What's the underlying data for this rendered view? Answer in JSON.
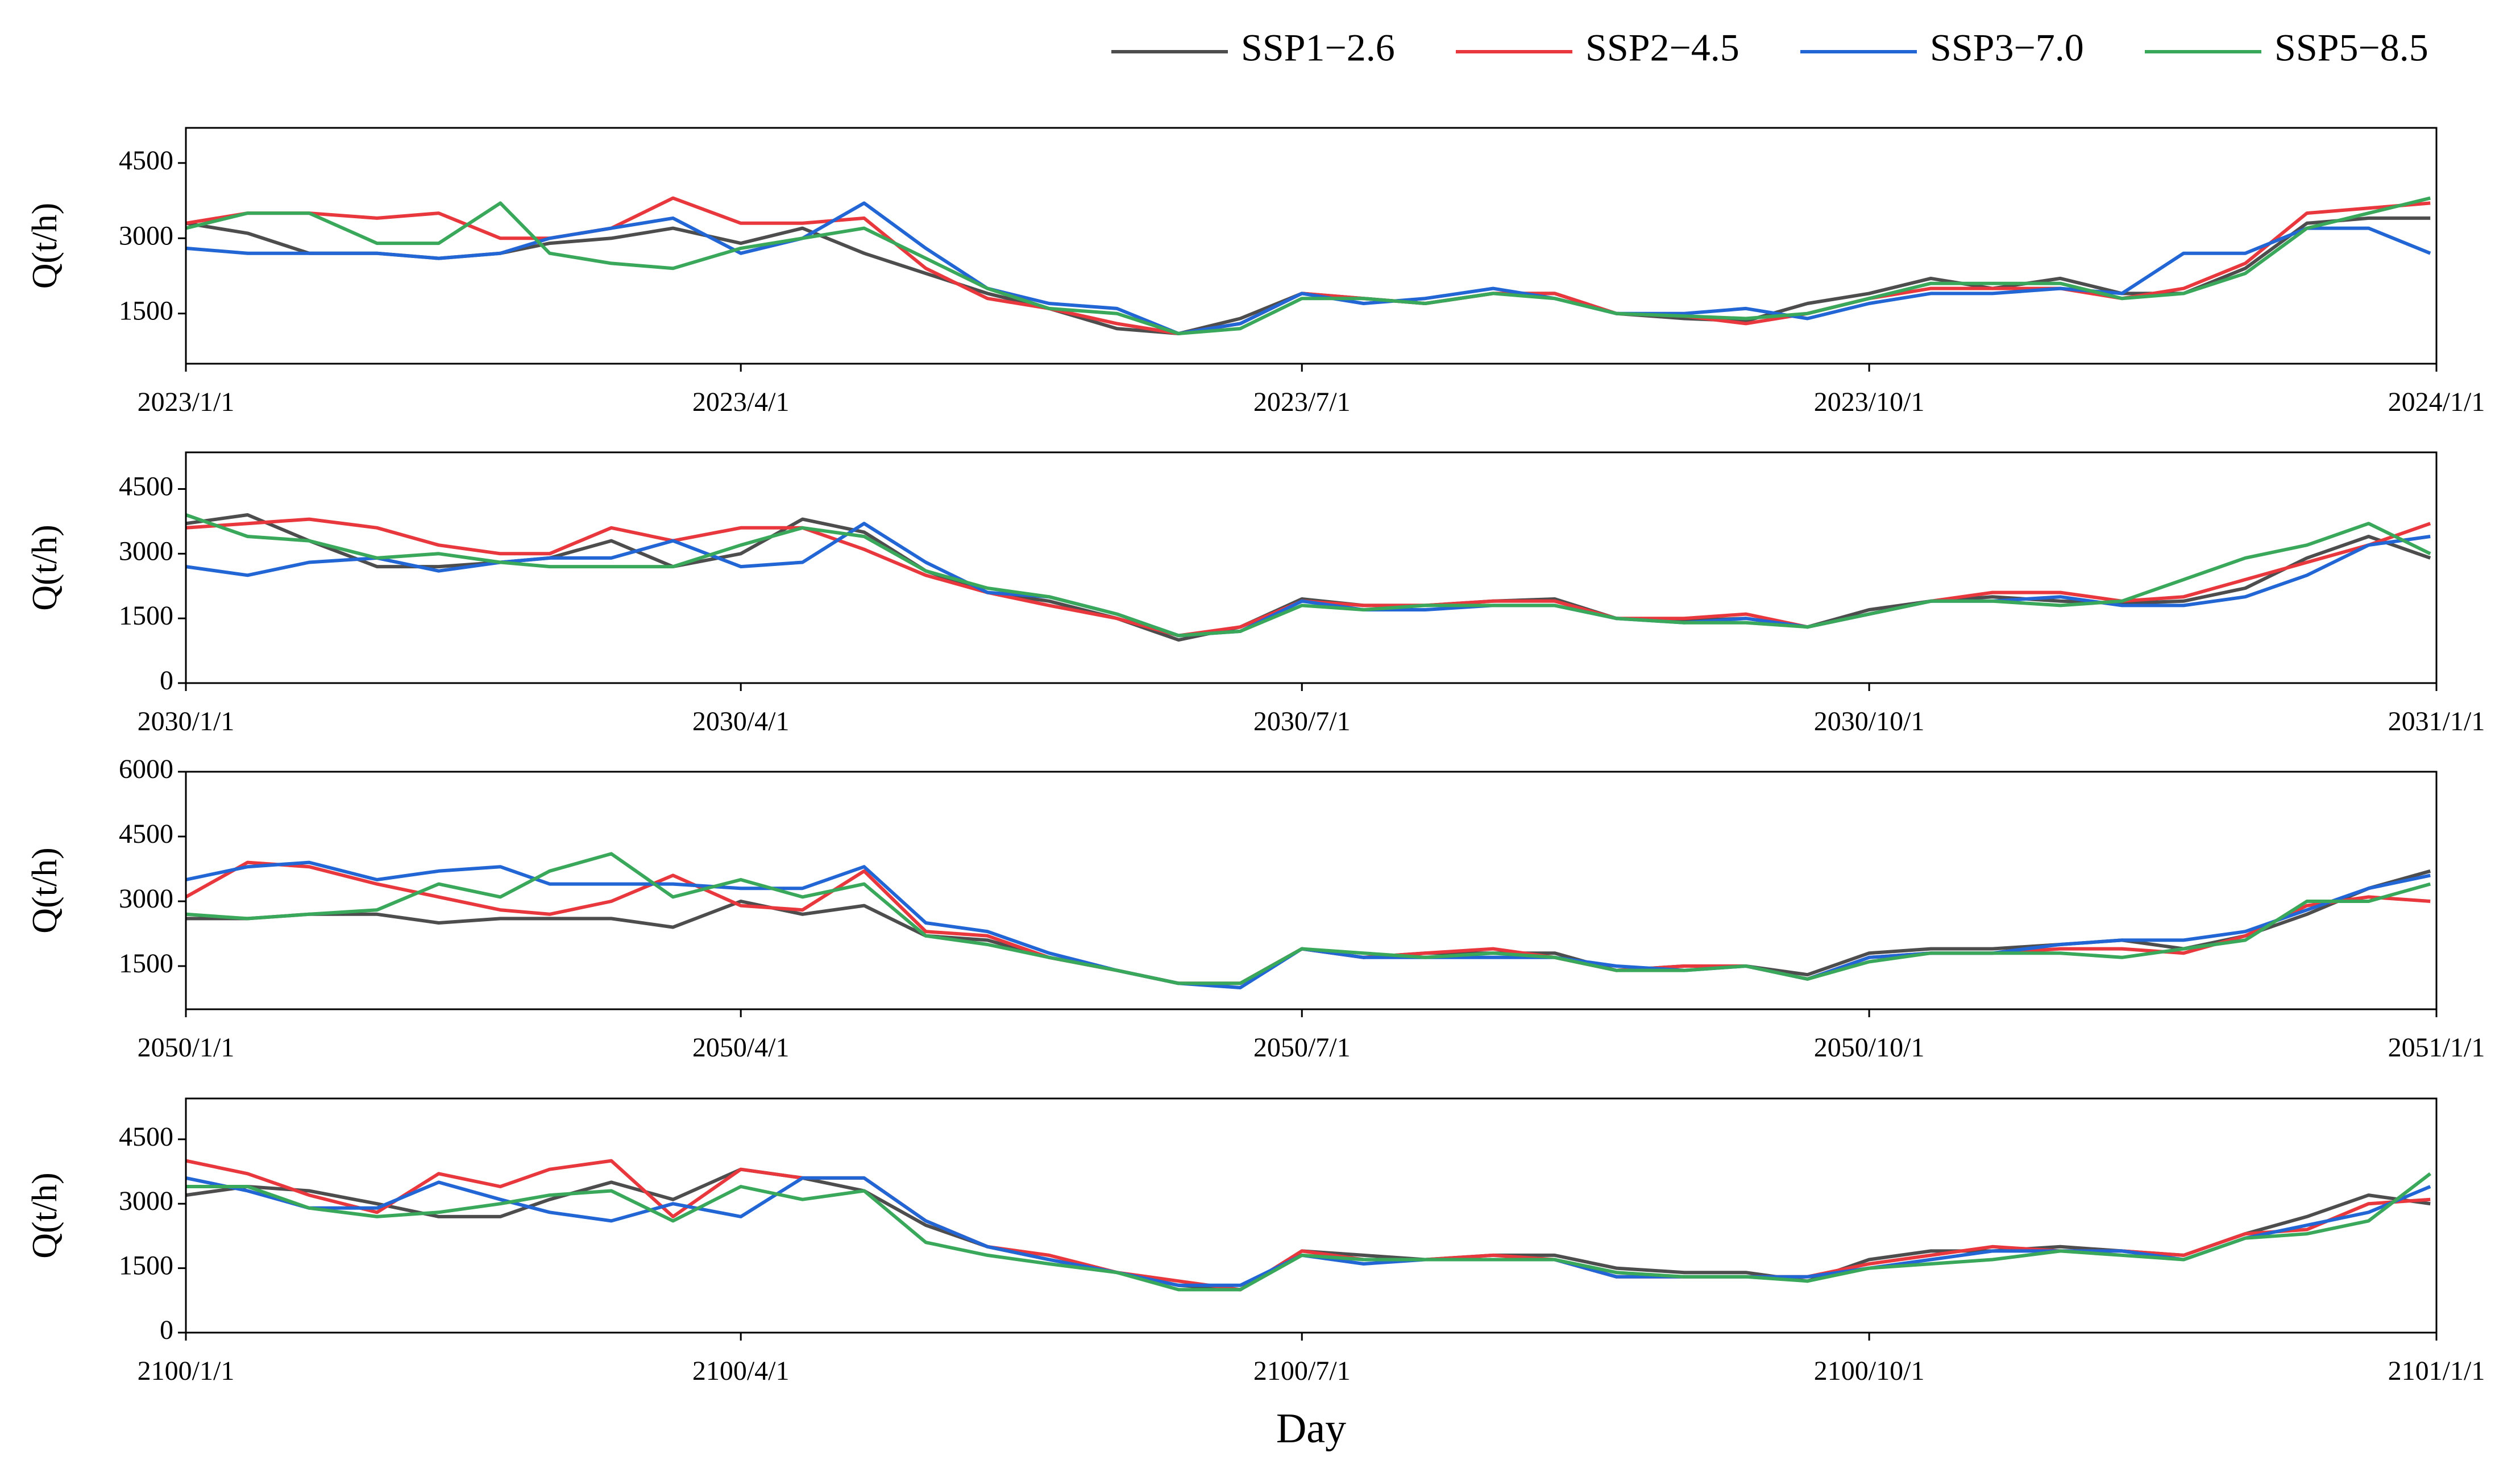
{
  "chart_data": [
    {
      "type": "line",
      "ylabel": "Q(t/h)",
      "legend": "upper right",
      "grid": false,
      "xlim": [
        "2023/1/1",
        "2024/1/1"
      ],
      "xticks": [
        "2023/1/1",
        "2023/4/1",
        "2023/7/1",
        "2023/10/1",
        "2024/1/1"
      ],
      "ylim": [
        500,
        5200
      ],
      "yticks": [
        1500,
        3000,
        4500
      ],
      "x": [
        "2023/1/1",
        "2023/1/11",
        "2023/1/21",
        "2023/2/1",
        "2023/2/11",
        "2023/2/21",
        "2023/3/1",
        "2023/3/11",
        "2023/3/21",
        "2023/4/1",
        "2023/4/11",
        "2023/4/21",
        "2023/5/1",
        "2023/5/11",
        "2023/5/21",
        "2023/6/1",
        "2023/6/11",
        "2023/6/21",
        "2023/7/1",
        "2023/7/11",
        "2023/7/21",
        "2023/8/1",
        "2023/8/11",
        "2023/8/21",
        "2023/9/1",
        "2023/9/11",
        "2023/9/21",
        "2023/10/1",
        "2023/10/11",
        "2023/10/21",
        "2023/11/1",
        "2023/11/11",
        "2023/11/21",
        "2023/12/1",
        "2023/12/11",
        "2023/12/21",
        "2023/12/31"
      ],
      "series": [
        {
          "name": "SSP1−2.6",
          "color": "#4d4d4d",
          "values": [
            3300,
            3100,
            2700,
            2700,
            2600,
            2700,
            2900,
            3000,
            3200,
            2900,
            3200,
            2700,
            2300,
            1900,
            1600,
            1200,
            1100,
            1400,
            1900,
            1800,
            1700,
            1900,
            1900,
            1500,
            1400,
            1350,
            1700,
            1900,
            2200,
            2000,
            2200,
            1900,
            1900,
            2400,
            3300,
            3400,
            3400
          ]
        },
        {
          "name": "SSP2−4.5",
          "color": "#e8383d",
          "values": [
            3300,
            3500,
            3500,
            3400,
            3500,
            3000,
            3000,
            3200,
            3800,
            3300,
            3300,
            3400,
            2400,
            1800,
            1600,
            1300,
            1100,
            1300,
            1900,
            1800,
            1700,
            1900,
            1900,
            1500,
            1450,
            1300,
            1500,
            1800,
            2000,
            2000,
            2000,
            1800,
            2000,
            2500,
            3500,
            3600,
            3700
          ]
        },
        {
          "name": "SSP3−7.0",
          "color": "#2166d4",
          "values": [
            2800,
            2700,
            2700,
            2700,
            2600,
            2700,
            3000,
            3200,
            3400,
            2700,
            3000,
            3700,
            2800,
            2000,
            1700,
            1600,
            1100,
            1300,
            1900,
            1700,
            1800,
            2000,
            1800,
            1500,
            1500,
            1600,
            1400,
            1700,
            1900,
            1900,
            2000,
            1900,
            2700,
            2700,
            3200,
            3200,
            2700
          ]
        },
        {
          "name": "SSP5−8.5",
          "color": "#3aa85a",
          "values": [
            3200,
            3500,
            3500,
            2900,
            2900,
            3700,
            2700,
            2500,
            2400,
            2800,
            3000,
            3200,
            2600,
            2000,
            1600,
            1500,
            1100,
            1200,
            1800,
            1800,
            1700,
            1900,
            1800,
            1500,
            1450,
            1400,
            1500,
            1800,
            2100,
            2100,
            2100,
            1800,
            1900,
            2300,
            3200,
            3500,
            3800
          ]
        }
      ]
    },
    {
      "type": "line",
      "ylabel": "Q(t/h)",
      "grid": false,
      "xlim": [
        "2030/1/1",
        "2031/1/1"
      ],
      "xticks": [
        "2030/1/1",
        "2030/4/1",
        "2030/7/1",
        "2030/10/1",
        "2031/1/1"
      ],
      "ylim": [
        0,
        5350
      ],
      "yticks": [
        0,
        1500,
        3000,
        4500
      ],
      "x": [
        "2030/1/1",
        "2030/1/11",
        "2030/1/21",
        "2030/2/1",
        "2030/2/11",
        "2030/2/21",
        "2030/3/1",
        "2030/3/11",
        "2030/3/21",
        "2030/4/1",
        "2030/4/11",
        "2030/4/21",
        "2030/5/1",
        "2030/5/11",
        "2030/5/21",
        "2030/6/1",
        "2030/6/11",
        "2030/6/21",
        "2030/7/1",
        "2030/7/11",
        "2030/7/21",
        "2030/8/1",
        "2030/8/11",
        "2030/8/21",
        "2030/9/1",
        "2030/9/11",
        "2030/9/21",
        "2030/10/1",
        "2030/10/11",
        "2030/10/21",
        "2030/11/1",
        "2030/11/11",
        "2030/11/21",
        "2030/12/1",
        "2030/12/11",
        "2030/12/21",
        "2030/12/31"
      ],
      "series": [
        {
          "name": "SSP1−2.6",
          "color": "#4d4d4d",
          "values": [
            3700,
            3900,
            3300,
            2700,
            2700,
            2800,
            2900,
            3300,
            2700,
            3000,
            3800,
            3500,
            2600,
            2100,
            1900,
            1500,
            1000,
            1300,
            1950,
            1800,
            1800,
            1900,
            1950,
            1500,
            1450,
            1500,
            1300,
            1700,
            1900,
            2000,
            1900,
            1850,
            1900,
            2200,
            2900,
            3400,
            2900
          ]
        },
        {
          "name": "SSP2−4.5",
          "color": "#e8383d",
          "values": [
            3600,
            3700,
            3800,
            3600,
            3200,
            3000,
            3000,
            3600,
            3300,
            3600,
            3600,
            3100,
            2500,
            2100,
            1800,
            1500,
            1100,
            1300,
            1900,
            1800,
            1800,
            1900,
            1900,
            1500,
            1500,
            1600,
            1300,
            1600,
            1900,
            2100,
            2100,
            1900,
            2000,
            2400,
            2800,
            3200,
            3700
          ]
        },
        {
          "name": "SSP3−7.0",
          "color": "#2166d4",
          "values": [
            2700,
            2500,
            2800,
            2900,
            2600,
            2800,
            2900,
            2900,
            3300,
            2700,
            2800,
            3700,
            2800,
            2100,
            2000,
            1600,
            1100,
            1200,
            1900,
            1700,
            1700,
            1800,
            1800,
            1500,
            1400,
            1500,
            1300,
            1600,
            1900,
            1900,
            2000,
            1800,
            1800,
            2000,
            2500,
            3200,
            3400
          ]
        },
        {
          "name": "SSP5−8.5",
          "color": "#3aa85a",
          "values": [
            3900,
            3400,
            3300,
            2900,
            3000,
            2800,
            2700,
            2700,
            2700,
            3200,
            3600,
            3400,
            2600,
            2200,
            2000,
            1600,
            1100,
            1200,
            1800,
            1700,
            1800,
            1800,
            1800,
            1500,
            1400,
            1400,
            1300,
            1600,
            1900,
            1900,
            1800,
            1900,
            2400,
            2900,
            3200,
            3700,
            3000
          ]
        }
      ]
    },
    {
      "type": "line",
      "ylabel": "Q(t/h)",
      "grid": false,
      "xlim": [
        "2050/1/1",
        "2051/1/1"
      ],
      "xticks": [
        "2050/1/1",
        "2050/4/1",
        "2050/7/1",
        "2050/10/1",
        "2051/1/1"
      ],
      "ylim": [
        500,
        6000
      ],
      "yticks": [
        1500,
        3000,
        4500,
        6000
      ],
      "x": [
        "2050/1/1",
        "2050/1/11",
        "2050/1/21",
        "2050/2/1",
        "2050/2/11",
        "2050/2/21",
        "2050/3/1",
        "2050/3/11",
        "2050/3/21",
        "2050/4/1",
        "2050/4/11",
        "2050/4/21",
        "2050/5/1",
        "2050/5/11",
        "2050/5/21",
        "2050/6/1",
        "2050/6/11",
        "2050/6/21",
        "2050/7/1",
        "2050/7/11",
        "2050/7/21",
        "2050/8/1",
        "2050/8/11",
        "2050/8/21",
        "2050/9/1",
        "2050/9/11",
        "2050/9/21",
        "2050/10/1",
        "2050/10/11",
        "2050/10/21",
        "2050/11/1",
        "2050/11/11",
        "2050/11/21",
        "2050/12/1",
        "2050/12/11",
        "2050/12/21",
        "2050/12/31"
      ],
      "series": [
        {
          "name": "SSP1−2.6",
          "color": "#4d4d4d",
          "values": [
            2600,
            2600,
            2700,
            2700,
            2500,
            2600,
            2600,
            2600,
            2400,
            3000,
            2700,
            2900,
            2200,
            2100,
            1700,
            1400,
            1100,
            1100,
            1900,
            1700,
            1800,
            1800,
            1800,
            1400,
            1500,
            1500,
            1300,
            1800,
            1900,
            1900,
            2000,
            2100,
            1900,
            2200,
            2700,
            3300,
            3700
          ]
        },
        {
          "name": "SSP2−4.5",
          "color": "#e8383d",
          "values": [
            3100,
            3900,
            3800,
            3400,
            3100,
            2800,
            2700,
            3000,
            3600,
            2900,
            2800,
            3700,
            2300,
            2200,
            1700,
            1400,
            1100,
            1100,
            1900,
            1700,
            1800,
            1900,
            1700,
            1400,
            1500,
            1500,
            1200,
            1700,
            1800,
            1800,
            1900,
            1900,
            1800,
            2200,
            2900,
            3100,
            3000
          ]
        },
        {
          "name": "SSP3−7.0",
          "color": "#2166d4",
          "values": [
            3500,
            3800,
            3900,
            3500,
            3700,
            3800,
            3400,
            3400,
            3400,
            3300,
            3300,
            3800,
            2500,
            2300,
            1800,
            1400,
            1100,
            1000,
            1900,
            1700,
            1700,
            1700,
            1700,
            1500,
            1400,
            1500,
            1200,
            1700,
            1800,
            1800,
            2000,
            2100,
            2100,
            2300,
            2800,
            3300,
            3600
          ]
        },
        {
          "name": "SSP5−8.5",
          "color": "#3aa85a",
          "values": [
            2700,
            2600,
            2700,
            2800,
            3400,
            3100,
            3700,
            4100,
            3100,
            3500,
            3100,
            3400,
            2200,
            2000,
            1700,
            1400,
            1100,
            1100,
            1900,
            1800,
            1700,
            1800,
            1700,
            1400,
            1400,
            1500,
            1200,
            1600,
            1800,
            1800,
            1800,
            1700,
            1900,
            2100,
            3000,
            3000,
            3400
          ]
        }
      ]
    },
    {
      "type": "line",
      "ylabel": "Q(t/h)",
      "xlabel": "Day",
      "grid": false,
      "xlim": [
        "2100/1/1",
        "2101/1/1"
      ],
      "xticks": [
        "2100/1/1",
        "2100/4/1",
        "2100/7/1",
        "2100/10/1",
        "2101/1/1"
      ],
      "ylim": [
        0,
        5450
      ],
      "yticks": [
        0,
        1500,
        3000,
        4500
      ],
      "x": [
        "2100/1/1",
        "2100/1/11",
        "2100/1/21",
        "2100/2/1",
        "2100/2/11",
        "2100/2/21",
        "2100/3/1",
        "2100/3/11",
        "2100/3/21",
        "2100/4/1",
        "2100/4/11",
        "2100/4/21",
        "2100/5/1",
        "2100/5/11",
        "2100/5/21",
        "2100/6/1",
        "2100/6/11",
        "2100/6/21",
        "2100/7/1",
        "2100/7/11",
        "2100/7/21",
        "2100/8/1",
        "2100/8/11",
        "2100/8/21",
        "2100/9/1",
        "2100/9/11",
        "2100/9/21",
        "2100/10/1",
        "2100/10/11",
        "2100/10/21",
        "2100/11/1",
        "2100/11/11",
        "2100/11/21",
        "2100/12/1",
        "2100/12/11",
        "2100/12/21",
        "2100/12/31"
      ],
      "series": [
        {
          "name": "SSP1−2.6",
          "color": "#4d4d4d",
          "values": [
            3200,
            3400,
            3300,
            3000,
            2700,
            2700,
            3100,
            3500,
            3100,
            3800,
            3600,
            3300,
            2500,
            2000,
            1700,
            1400,
            1100,
            1000,
            1900,
            1800,
            1700,
            1800,
            1800,
            1500,
            1400,
            1400,
            1200,
            1700,
            1900,
            1900,
            2000,
            1900,
            1800,
            2300,
            2700,
            3200,
            3000
          ]
        },
        {
          "name": "SSP2−4.5",
          "color": "#e8383d",
          "values": [
            4000,
            3700,
            3200,
            2800,
            3700,
            3400,
            3800,
            4000,
            2700,
            3800,
            3600,
            3600,
            2600,
            2000,
            1800,
            1400,
            1200,
            1000,
            1900,
            1700,
            1700,
            1800,
            1700,
            1300,
            1300,
            1300,
            1300,
            1600,
            1800,
            2000,
            1900,
            1900,
            1800,
            2300,
            2400,
            3000,
            3100
          ]
        },
        {
          "name": "SSP3−7.0",
          "color": "#2166d4",
          "values": [
            3600,
            3300,
            2900,
            2900,
            3500,
            3100,
            2800,
            2600,
            3000,
            2700,
            3600,
            3600,
            2600,
            2000,
            1700,
            1400,
            1100,
            1100,
            1800,
            1600,
            1700,
            1700,
            1700,
            1300,
            1300,
            1300,
            1300,
            1500,
            1700,
            1900,
            1900,
            1900,
            1700,
            2200,
            2500,
            2800,
            3400
          ]
        },
        {
          "name": "SSP5−8.5",
          "color": "#3aa85a",
          "values": [
            3400,
            3400,
            2900,
            2700,
            2800,
            3000,
            3200,
            3300,
            2600,
            3400,
            3100,
            3300,
            2100,
            1800,
            1600,
            1400,
            1000,
            1000,
            1800,
            1700,
            1700,
            1700,
            1700,
            1400,
            1300,
            1300,
            1200,
            1500,
            1600,
            1700,
            1900,
            1800,
            1700,
            2200,
            2300,
            2600,
            3700
          ]
        }
      ]
    }
  ]
}
